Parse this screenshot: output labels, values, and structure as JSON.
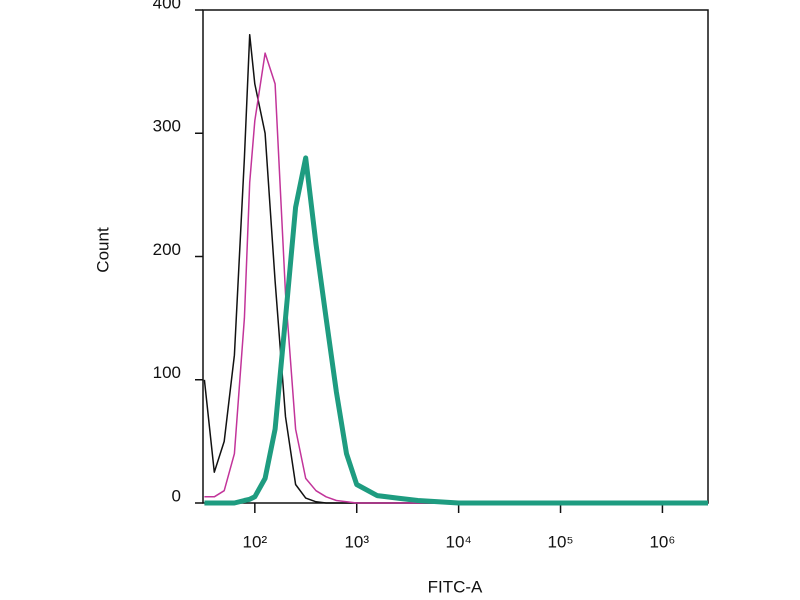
{
  "chart_data": {
    "type": "line",
    "x_label": "FITC-A",
    "y_label": "Count",
    "xscale": "log",
    "x": [
      32,
      40,
      50,
      63,
      79,
      89,
      100,
      126,
      158,
      200,
      251,
      316,
      398,
      501,
      631,
      794,
      1000,
      1585,
      2512,
      3981,
      6310,
      10000,
      100000,
      1000000,
      2800000
    ],
    "series": [
      {
        "color": "#111111",
        "width": 1.5,
        "values": [
          100,
          25,
          50,
          120,
          280,
          380,
          340,
          300,
          180,
          70,
          15,
          4,
          1,
          0,
          0,
          0,
          0,
          0,
          0,
          0,
          0,
          0,
          0,
          0,
          0
        ]
      },
      {
        "color": "#c2349a",
        "width": 1.5,
        "values": [
          5,
          5,
          10,
          40,
          150,
          260,
          310,
          365,
          340,
          170,
          60,
          20,
          10,
          5,
          2,
          1,
          0,
          0,
          0,
          0,
          0,
          0,
          0,
          0,
          0
        ]
      },
      {
        "color": "#1e9c80",
        "width": 5,
        "values": [
          0,
          0,
          0,
          0,
          2,
          3,
          5,
          20,
          60,
          150,
          240,
          280,
          210,
          150,
          90,
          40,
          15,
          6,
          4,
          2,
          1,
          0,
          0,
          0,
          0
        ]
      }
    ],
    "xlim": [
      31,
      2800000
    ],
    "ylim": [
      0,
      400
    ],
    "xticks": [
      {
        "value": 100,
        "label": "10²"
      },
      {
        "value": 1000,
        "label": "10³"
      },
      {
        "value": 10000,
        "label": "10⁴"
      },
      {
        "value": 100000,
        "label": "10⁵"
      },
      {
        "value": 1000000,
        "label": "10⁶"
      }
    ],
    "yticks": [
      0,
      100,
      200,
      300,
      400
    ]
  }
}
